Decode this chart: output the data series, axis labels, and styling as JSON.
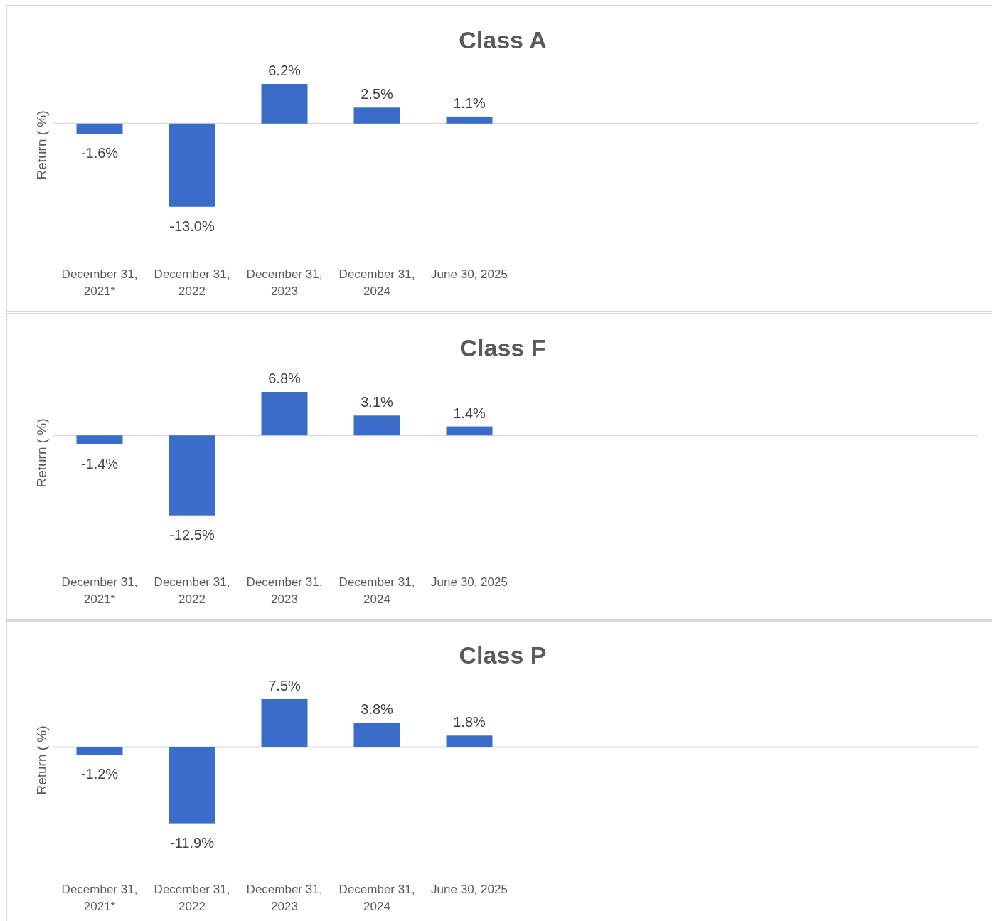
{
  "chart_data": [
    {
      "type": "bar",
      "title": "Class A",
      "ylabel": "Return ( %)",
      "categories": [
        "December 31, 2021*",
        "December 31, 2022",
        "December 31, 2023",
        "December 31, 2024",
        "June 30, 2025",
        null,
        null,
        null,
        null,
        null
      ],
      "values": [
        -1.6,
        -13.0,
        6.2,
        2.5,
        1.1,
        null,
        null,
        null,
        null,
        null
      ],
      "value_labels": [
        "-1.6%",
        "-13.0%",
        "6.2%",
        "2.5%",
        "1.1%",
        null,
        null,
        null,
        null,
        null
      ],
      "color": "#3a6dc9"
    },
    {
      "type": "bar",
      "title": "Class F",
      "ylabel": "Return ( %)",
      "categories": [
        "December 31, 2021*",
        "December 31, 2022",
        "December 31, 2023",
        "December 31, 2024",
        "June 30, 2025",
        null,
        null,
        null,
        null,
        null
      ],
      "values": [
        -1.4,
        -12.5,
        6.8,
        3.1,
        1.4,
        null,
        null,
        null,
        null,
        null
      ],
      "value_labels": [
        "-1.4%",
        "-12.5%",
        "6.8%",
        "3.1%",
        "1.4%",
        null,
        null,
        null,
        null,
        null
      ],
      "color": "#3a6dc9"
    },
    {
      "type": "bar",
      "title": "Class P",
      "ylabel": "Return ( %)",
      "categories": [
        "December 31, 2021*",
        "December 31, 2022",
        "December 31, 2023",
        "December 31, 2024",
        "June 30, 2025",
        null,
        null,
        null,
        null,
        null
      ],
      "values": [
        -1.2,
        -11.9,
        7.5,
        3.8,
        1.8,
        null,
        null,
        null,
        null,
        null
      ],
      "value_labels": [
        "-1.2%",
        "-11.9%",
        "7.5%",
        "3.8%",
        "1.8%",
        null,
        null,
        null,
        null,
        null
      ],
      "color": "#3a6dc9"
    }
  ]
}
